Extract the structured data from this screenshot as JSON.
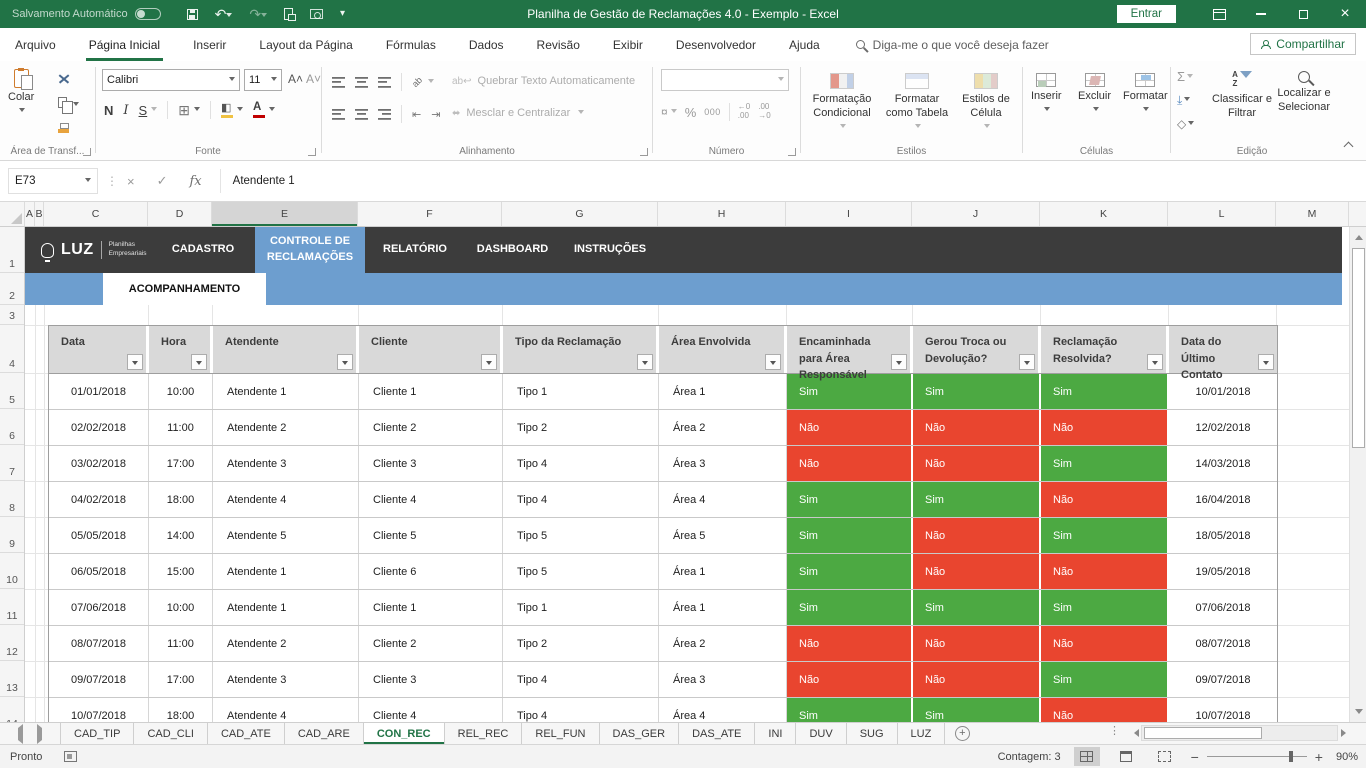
{
  "colors": {
    "accent_green": "#217346",
    "nav_dark": "#3C3C3C",
    "band_blue": "#6D9ECF",
    "yes_green": "#4CA942",
    "no_red": "#E9452F",
    "header_gray": "#D9D9D9"
  },
  "titlebar": {
    "autosave": "Salvamento Automático",
    "title": "Planilha de Gestão de Reclamações 4.0 - Exemplo  -  Excel",
    "sign_in": "Entrar"
  },
  "ribbon": {
    "tabs": [
      {
        "label": "Arquivo"
      },
      {
        "label": "Página Inicial",
        "active": true
      },
      {
        "label": "Inserir"
      },
      {
        "label": "Layout da Página"
      },
      {
        "label": "Fórmulas"
      },
      {
        "label": "Dados"
      },
      {
        "label": "Revisão"
      },
      {
        "label": "Exibir"
      },
      {
        "label": "Desenvolvedor"
      },
      {
        "label": "Ajuda"
      }
    ],
    "search": "Diga-me o que você deseja fazer",
    "share": "Compartilhar",
    "font_name": "Calibri",
    "font_size": "11",
    "bold": "N",
    "italic": "I",
    "underline": "S",
    "groups": {
      "clipboard": {
        "label": "Área de Transf...",
        "paste": "Colar"
      },
      "font": {
        "label": "Fonte"
      },
      "alignment": {
        "label": "Alinhamento",
        "wrap": "Quebrar Texto Automaticamente",
        "merge": "Mesclar e Centralizar"
      },
      "number": {
        "label": "Número",
        "percent": "%",
        "thousands": "000"
      },
      "styles": {
        "label": "Estilos",
        "conditional": "Formatação Condicional",
        "format_table": "Formatar como Tabela",
        "cell_styles": "Estilos de Célula"
      },
      "cells": {
        "label": "Células",
        "insert": "Inserir",
        "delete": "Excluir",
        "format": "Formatar"
      },
      "editing": {
        "label": "Edição",
        "sort": "Classificar e Filtrar",
        "find": "Localizar e Selecionar"
      }
    }
  },
  "formula_bar": {
    "cell_ref": "E73",
    "value": "Atendente 1"
  },
  "grid": {
    "columns": [
      "A",
      "B",
      "C",
      "D",
      "E",
      "F",
      "G",
      "H",
      "I",
      "J",
      "K",
      "L",
      "M"
    ],
    "selected_column": "E",
    "rows": [
      1,
      2,
      3,
      4,
      5,
      6,
      7,
      8,
      9,
      10,
      11,
      12,
      13,
      14
    ]
  },
  "nav": {
    "brand": "LUZ",
    "brand_sub": "Planilhas Empresariais",
    "tabs": [
      {
        "label": "CADASTRO"
      },
      {
        "label": "CONTROLE DE RECLAMAÇÕES",
        "active": true
      },
      {
        "label": "RELATÓRIO"
      },
      {
        "label": "DASHBOARD"
      },
      {
        "label": "INSTRUÇÕES"
      }
    ],
    "subtab": "ACOMPANHAMENTO"
  },
  "table": {
    "headers": [
      "Data",
      "Hora",
      "Atendente",
      "Cliente",
      "Tipo da Reclamação",
      "Área Envolvida",
      "Encaminhada para Área Responsável",
      "Gerou Troca ou Devolução?",
      "Reclamação Resolvida?",
      "Data do Último Contato"
    ],
    "rows": [
      [
        "01/01/2018",
        "10:00",
        "Atendente 1",
        "Cliente 1",
        "Tipo 1",
        "Área 1",
        "Sim",
        "Sim",
        "Sim",
        "10/01/2018"
      ],
      [
        "02/02/2018",
        "11:00",
        "Atendente 2",
        "Cliente 2",
        "Tipo 2",
        "Área 2",
        "Não",
        "Não",
        "Não",
        "12/02/2018"
      ],
      [
        "03/02/2018",
        "17:00",
        "Atendente 3",
        "Cliente 3",
        "Tipo 4",
        "Área 3",
        "Não",
        "Não",
        "Sim",
        "14/03/2018"
      ],
      [
        "04/02/2018",
        "18:00",
        "Atendente 4",
        "Cliente 4",
        "Tipo 4",
        "Área 4",
        "Sim",
        "Sim",
        "Não",
        "16/04/2018"
      ],
      [
        "05/05/2018",
        "14:00",
        "Atendente 5",
        "Cliente 5",
        "Tipo 5",
        "Área 5",
        "Sim",
        "Não",
        "Sim",
        "18/05/2018"
      ],
      [
        "06/05/2018",
        "15:00",
        "Atendente 1",
        "Cliente 6",
        "Tipo 5",
        "Área 1",
        "Sim",
        "Não",
        "Não",
        "19/05/2018"
      ],
      [
        "07/06/2018",
        "10:00",
        "Atendente 1",
        "Cliente 1",
        "Tipo 1",
        "Área 1",
        "Sim",
        "Sim",
        "Sim",
        "07/06/2018"
      ],
      [
        "08/07/2018",
        "11:00",
        "Atendente 2",
        "Cliente 2",
        "Tipo 2",
        "Área 2",
        "Não",
        "Não",
        "Não",
        "08/07/2018"
      ],
      [
        "09/07/2018",
        "17:00",
        "Atendente 3",
        "Cliente 3",
        "Tipo 4",
        "Área 3",
        "Não",
        "Não",
        "Sim",
        "09/07/2018"
      ],
      [
        "10/07/2018",
        "18:00",
        "Atendente 4",
        "Cliente 4",
        "Tipo 4",
        "Área 4",
        "Sim",
        "Sim",
        "Não",
        "10/07/2018"
      ]
    ]
  },
  "sheet_tabs": {
    "tabs": [
      "CAD_TIP",
      "CAD_CLI",
      "CAD_ATE",
      "CAD_ARE",
      "CON_REC",
      "REL_REC",
      "REL_FUN",
      "DAS_GER",
      "DAS_ATE",
      "INI",
      "DUV",
      "SUG",
      "LUZ"
    ],
    "active": "CON_REC"
  },
  "status": {
    "mode": "Pronto",
    "count": "Contagem: 3",
    "zoom": "90%"
  }
}
